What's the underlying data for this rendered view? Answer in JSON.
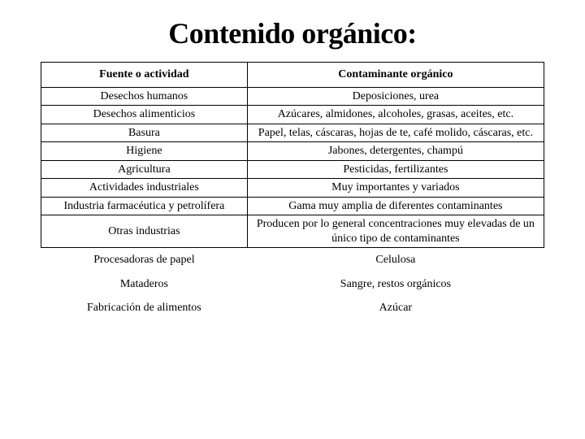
{
  "title": "Contenido orgánico:",
  "table": {
    "header": {
      "c1": "Fuente o actividad",
      "c2": "Contaminante orgánico"
    },
    "rows": [
      {
        "c1": "Desechos humanos",
        "c2": "Deposiciones, urea"
      },
      {
        "c1": "Desechos alimenticios",
        "c2": "Azúcares, almidones, alcoholes, grasas, aceites, etc."
      },
      {
        "c1": "Basura",
        "c2": "Papel, telas, cáscaras, hojas de te, café molido, cáscaras, etc."
      },
      {
        "c1": "Higiene",
        "c2": "Jabones, detergentes, champú"
      },
      {
        "c1": "Agricultura",
        "c2": "Pesticidas, fertilizantes"
      },
      {
        "c1": "Actividades industriales",
        "c2": "Muy importantes y variados"
      },
      {
        "c1": "Industria farmacéutica y petrolífera",
        "c2": "Gama muy amplia de diferentes contaminantes"
      },
      {
        "c1": "Otras industrias",
        "c2": "Producen por lo general concentraciones muy elevadas de un único tipo de contaminantes"
      }
    ],
    "footer": [
      {
        "c1": "Procesadoras de papel",
        "c2": "Celulosa"
      },
      {
        "c1": "Mataderos",
        "c2": "Sangre, restos orgánicos"
      },
      {
        "c1": "Fabricación de alimentos",
        "c2": "Azúcar"
      }
    ]
  },
  "styling": {
    "type": "table",
    "background_color": "#ffffff",
    "text_color": "#000000",
    "border_color": "#000000",
    "title_fontsize": 36,
    "cell_fontsize": 14,
    "col1_width_pct": 41,
    "col2_width_pct": 59
  }
}
